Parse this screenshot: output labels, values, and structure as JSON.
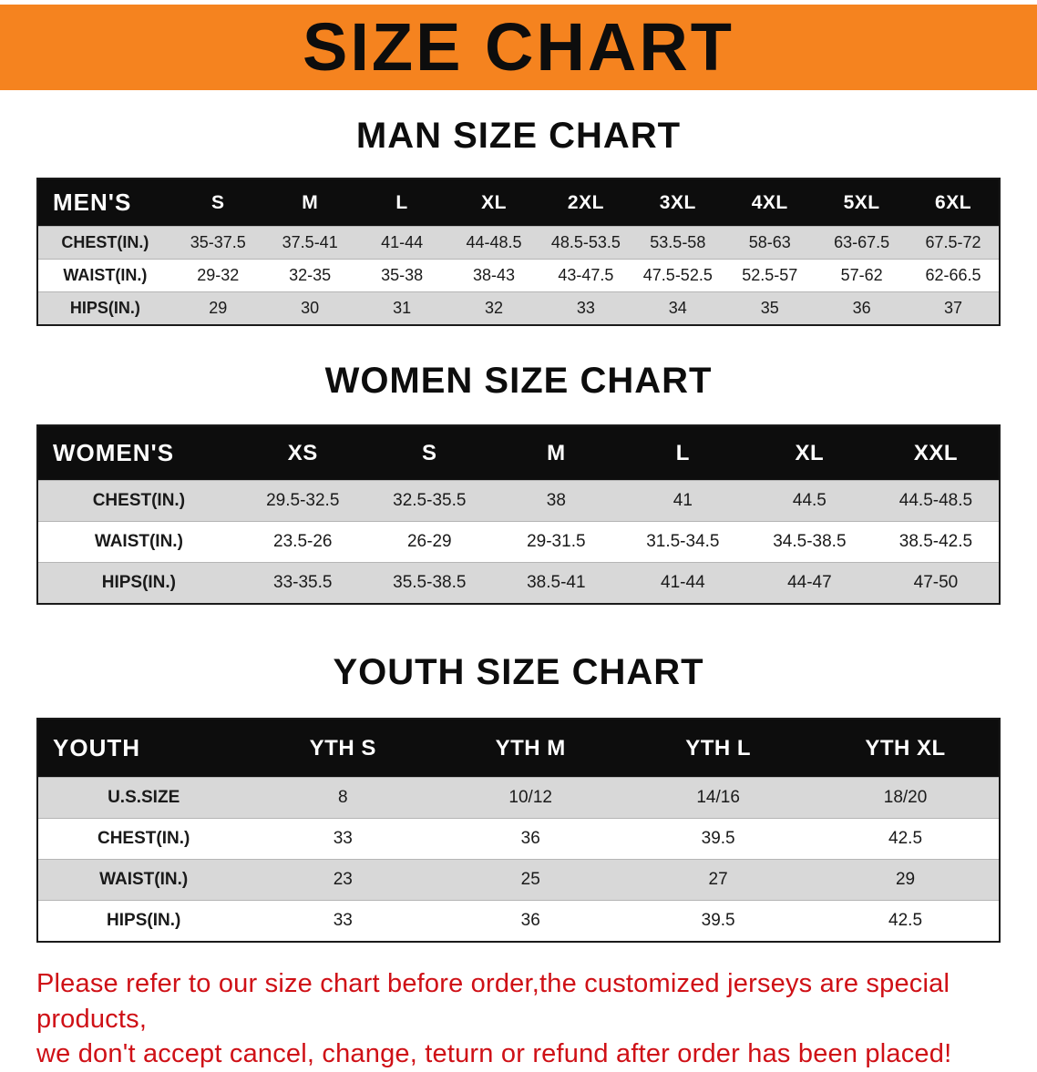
{
  "banner": {
    "title": "SIZE CHART",
    "bg_color": "#f5831f"
  },
  "sections": [
    {
      "heading": "MAN SIZE CHART",
      "table": {
        "header": [
          "MEN'S",
          "S",
          "M",
          "L",
          "XL",
          "2XL",
          "3XL",
          "4XL",
          "5XL",
          "6XL"
        ],
        "rows": [
          [
            "CHEST(IN.)",
            "35-37.5",
            "37.5-41",
            "41-44",
            "44-48.5",
            "48.5-53.5",
            "53.5-58",
            "58-63",
            "63-67.5",
            "67.5-72"
          ],
          [
            "WAIST(IN.)",
            "29-32",
            "32-35",
            "35-38",
            "38-43",
            "43-47.5",
            "47.5-52.5",
            "52.5-57",
            "57-62",
            "62-66.5"
          ],
          [
            "HIPS(IN.)",
            "29",
            "30",
            "31",
            "32",
            "33",
            "34",
            "35",
            "36",
            "37"
          ]
        ]
      }
    },
    {
      "heading": "WOMEN SIZE CHART",
      "table": {
        "header": [
          "WOMEN'S",
          "XS",
          "S",
          "M",
          "L",
          "XL",
          "XXL"
        ],
        "rows": [
          [
            "CHEST(IN.)",
            "29.5-32.5",
            "32.5-35.5",
            "38",
            "41",
            "44.5",
            "44.5-48.5"
          ],
          [
            "WAIST(IN.)",
            "23.5-26",
            "26-29",
            "29-31.5",
            "31.5-34.5",
            "34.5-38.5",
            "38.5-42.5"
          ],
          [
            "HIPS(IN.)",
            "33-35.5",
            "35.5-38.5",
            "38.5-41",
            "41-44",
            "44-47",
            "47-50"
          ]
        ]
      }
    },
    {
      "heading": "YOUTH SIZE CHART",
      "table": {
        "header": [
          "YOUTH",
          "YTH S",
          "YTH M",
          "YTH L",
          "YTH XL"
        ],
        "rows": [
          [
            "U.S.SIZE",
            "8",
            "10/12",
            "14/16",
            "18/20"
          ],
          [
            "CHEST(IN.)",
            "33",
            "36",
            "39.5",
            "42.5"
          ],
          [
            "WAIST(IN.)",
            "23",
            "25",
            "27",
            "29"
          ],
          [
            "HIPS(IN.)",
            "33",
            "36",
            "39.5",
            "42.5"
          ]
        ]
      }
    }
  ],
  "disclaimer": {
    "line1": "Please refer to our size chart before order,the customized jerseys are special products,",
    "line2": "we don't accept cancel, change, teturn or refund after order has been placed!",
    "color": "#cf1016"
  },
  "colors": {
    "header_row_bg": "#0d0d0d",
    "alt_row_bg": "#d8d8d8",
    "banner_orange": "#f5831f",
    "disclaimer_red": "#cf1016"
  }
}
